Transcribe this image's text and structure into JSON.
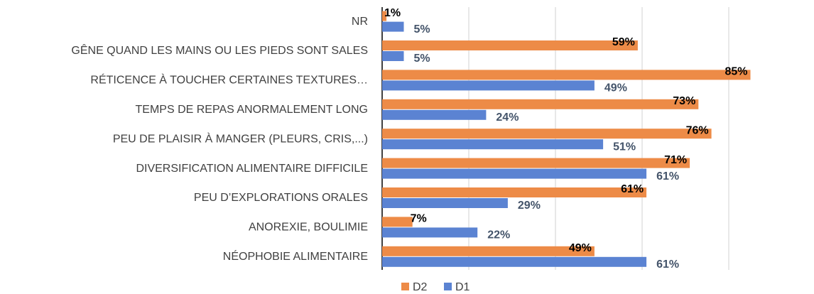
{
  "chart_data": {
    "type": "barh",
    "categories": [
      "NR",
      "GÊNE QUAND LES MAINS OU LES PIEDS SONT SALES",
      "RÉTICENCE À TOUCHER CERTAINES TEXTURES…",
      "TEMPS DE REPAS ANORMALEMENT LONG",
      "PEU DE PLAISIR À MANGER (PLEURS, CRIS,...)",
      "DIVERSIFICATION ALIMENTAIRE DIFFICILE",
      "PEU D’EXPLORATIONS ORALES",
      "ANOREXIE, BOULIMIE",
      "NÉOPHOBIE ALIMENTAIRE"
    ],
    "series": [
      {
        "name": "D2",
        "color": "#ed8b47",
        "values": [
          1,
          59,
          85,
          73,
          76,
          71,
          61,
          7,
          49
        ],
        "value_labels": [
          "1%",
          "59%",
          "85%",
          "73%",
          "76%",
          "71%",
          "61%",
          "7%",
          "49%"
        ]
      },
      {
        "name": "D1",
        "color": "#5b83d2",
        "values": [
          5,
          5,
          49,
          24,
          51,
          61,
          29,
          22,
          61
        ],
        "value_labels": [
          "5%",
          "5%",
          "49%",
          "24%",
          "51%",
          "61%",
          "29%",
          "22%",
          "61%"
        ]
      }
    ],
    "xlim": [
      0,
      100
    ],
    "xticks": [
      0,
      20,
      40,
      60,
      80
    ],
    "grid": true,
    "legend": "bottom"
  }
}
